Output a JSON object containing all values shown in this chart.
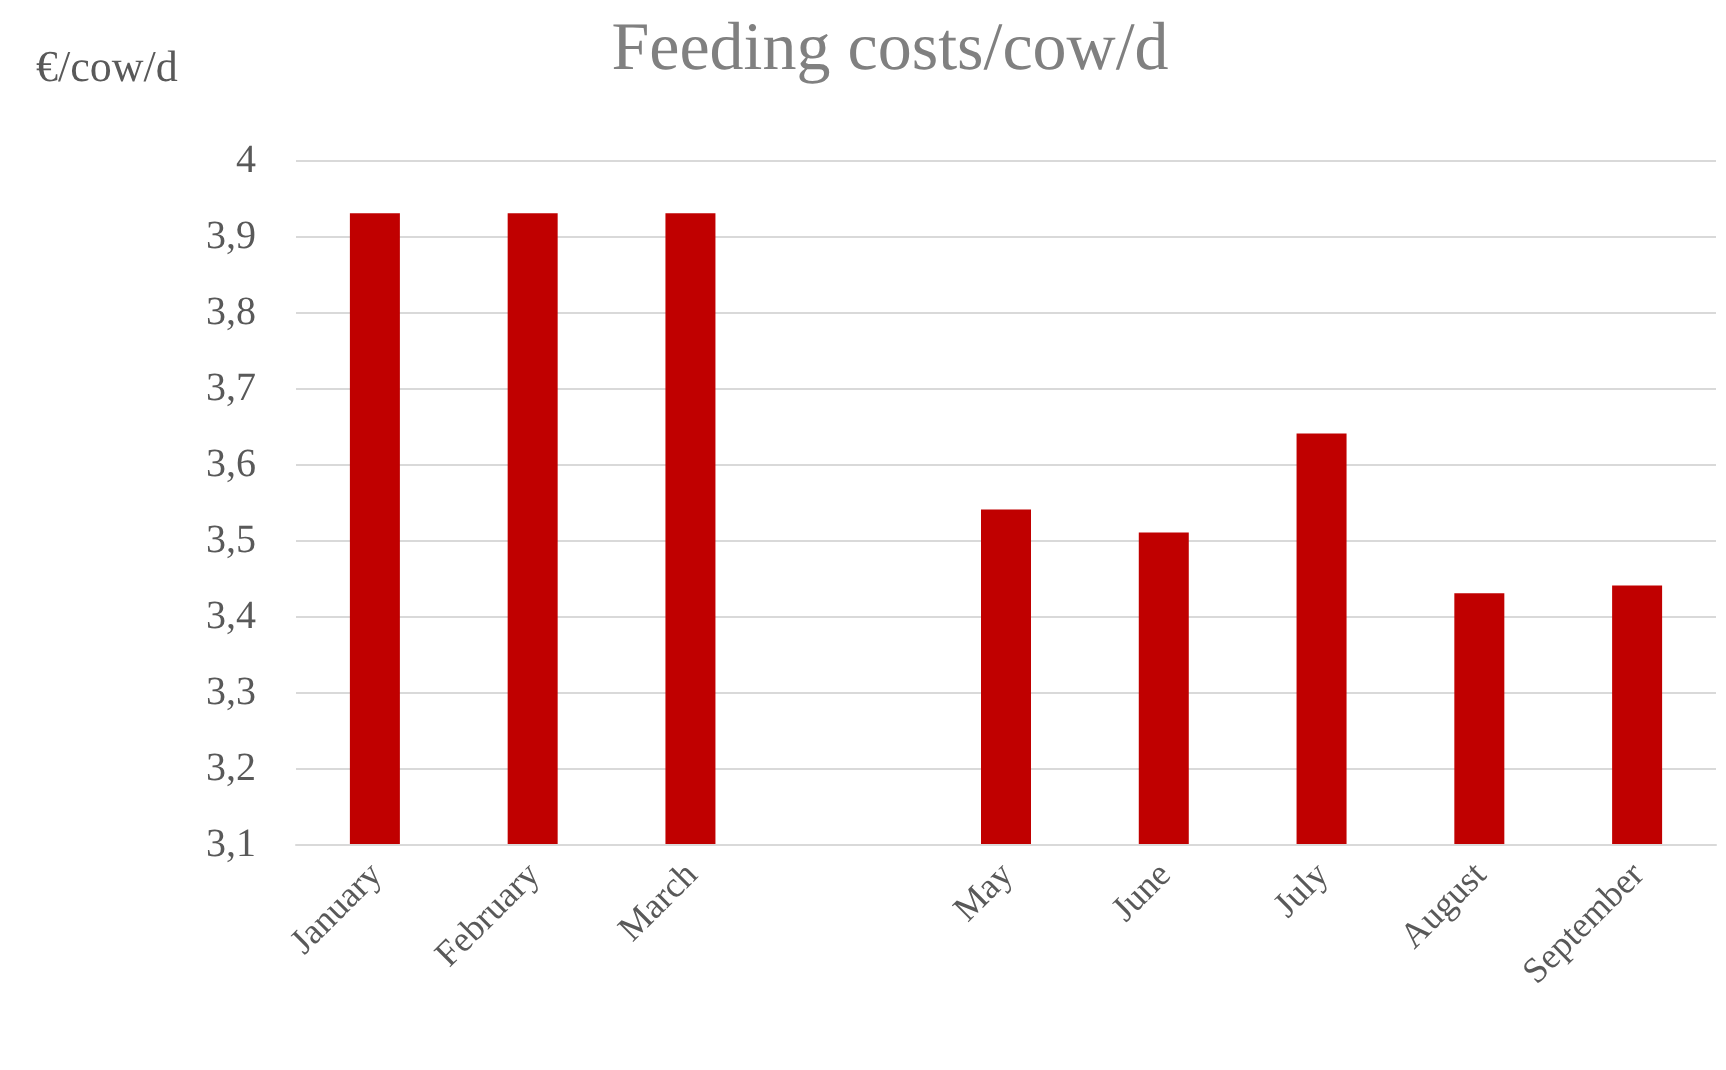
{
  "chart_data": {
    "type": "bar",
    "title": "Feeding costs/cow/d",
    "ylabel": "€/cow/d",
    "categories": [
      "January",
      "February",
      "March",
      null,
      "May",
      "June",
      "July",
      "August",
      "September"
    ],
    "values": [
      3.93,
      3.93,
      3.93,
      null,
      3.54,
      3.51,
      3.64,
      3.43,
      3.44
    ],
    "color": "#c00000",
    "ylim": [
      3.1,
      4
    ],
    "yticks": [
      {
        "value": 3.1,
        "label": "3,1"
      },
      {
        "value": 3.2,
        "label": "3,2"
      },
      {
        "value": 3.3,
        "label": "3,3"
      },
      {
        "value": 3.4,
        "label": "3,4"
      },
      {
        "value": 3.5,
        "label": "3,5"
      },
      {
        "value": 3.6,
        "label": "3,6"
      },
      {
        "value": 3.7,
        "label": "3,7"
      },
      {
        "value": 3.8,
        "label": "3,8"
      },
      {
        "value": 3.9,
        "label": "3,9"
      },
      {
        "value": 4,
        "label": "4"
      }
    ],
    "grid": "y"
  }
}
